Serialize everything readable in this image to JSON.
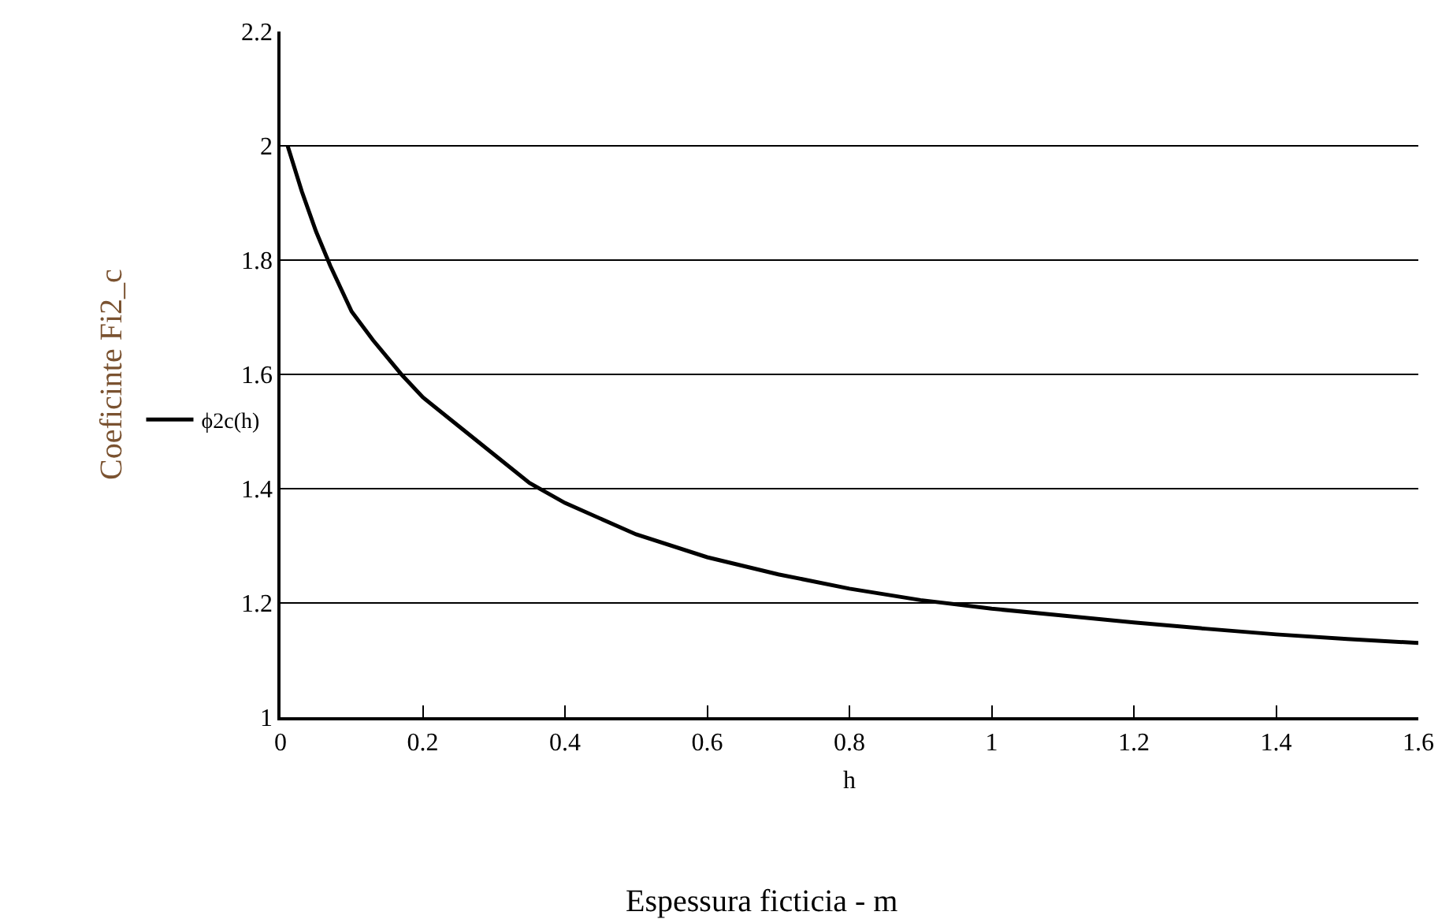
{
  "chart_data": {
    "type": "line",
    "xlabel": "h",
    "ylabel": "Coeficinte Fi2_c",
    "annotations": [
      "Espessura ficticia - m"
    ],
    "x": [
      0.01,
      0.03,
      0.05,
      0.07,
      0.1,
      0.13,
      0.17,
      0.2,
      0.25,
      0.3,
      0.35,
      0.4,
      0.5,
      0.6,
      0.7,
      0.8,
      0.9,
      1.0,
      1.1,
      1.2,
      1.3,
      1.4,
      1.5,
      1.6
    ],
    "series": [
      {
        "name": "ϕ2c(h)",
        "color": "#000000",
        "values": [
          2.0,
          1.92,
          1.85,
          1.79,
          1.71,
          1.66,
          1.6,
          1.56,
          1.51,
          1.46,
          1.41,
          1.375,
          1.32,
          1.28,
          1.25,
          1.225,
          1.205,
          1.19,
          1.178,
          1.166,
          1.155,
          1.145,
          1.137,
          1.13
        ]
      }
    ],
    "xlim": [
      0,
      1.6
    ],
    "xticks": [
      0,
      0.2,
      0.4,
      0.6,
      0.8,
      1,
      1.2,
      1.4,
      1.6
    ],
    "ylim": [
      1,
      2.2
    ],
    "yticks": [
      1,
      1.2,
      1.4,
      1.6,
      1.8,
      2,
      2.2
    ],
    "grid": "y",
    "legend": "left",
    "marker": "none",
    "line_style": "solid"
  }
}
